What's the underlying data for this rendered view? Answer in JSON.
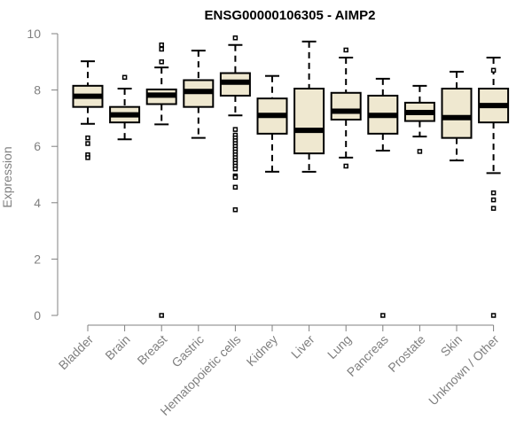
{
  "chart_data": {
    "type": "box",
    "title": "ENSG00000106305 - AIMP2",
    "xlabel": "",
    "ylabel": "Expression",
    "ylim": [
      0,
      10
    ],
    "yticks": [
      0,
      2,
      4,
      6,
      8,
      10
    ],
    "grid": false,
    "legend": "none",
    "box_fill": "#efe8d0",
    "stroke": "#000000",
    "categories": [
      "Bladder",
      "Brain",
      "Breast",
      "Gastric",
      "Hematopoietic cells",
      "Kidney",
      "Liver",
      "Lung",
      "Pancreas",
      "Prostate",
      "Skin",
      "Unknown / Other"
    ],
    "boxes": [
      {
        "category": "Bladder",
        "whisker_low": 6.8,
        "q1": 7.4,
        "median": 7.78,
        "q3": 8.15,
        "whisker_high": 9.02,
        "outliers": [
          6.3,
          6.1,
          5.7,
          5.6
        ]
      },
      {
        "category": "Brain",
        "whisker_low": 6.25,
        "q1": 6.85,
        "median": 7.12,
        "q3": 7.4,
        "whisker_high": 8.05,
        "outliers": [
          8.45
        ]
      },
      {
        "category": "Breast",
        "whisker_low": 6.78,
        "q1": 7.5,
        "median": 7.82,
        "q3": 8.02,
        "whisker_high": 8.8,
        "outliers": [
          9.6,
          9.45,
          9.0,
          0
        ]
      },
      {
        "category": "Gastric",
        "whisker_low": 6.3,
        "q1": 7.4,
        "median": 7.95,
        "q3": 8.35,
        "whisker_high": 9.4,
        "outliers": []
      },
      {
        "category": "Hematopoietic cells",
        "whisker_low": 7.1,
        "q1": 7.8,
        "median": 8.28,
        "q3": 8.6,
        "whisker_high": 9.6,
        "outliers": [
          9.85,
          6.6,
          6.4,
          6.3,
          6.2,
          6.1,
          6.0,
          5.9,
          5.8,
          5.7,
          5.6,
          5.5,
          5.4,
          5.3,
          5.2,
          4.95,
          4.9,
          4.55,
          3.75
        ]
      },
      {
        "category": "Kidney",
        "whisker_low": 5.1,
        "q1": 6.45,
        "median": 7.1,
        "q3": 7.7,
        "whisker_high": 8.5,
        "outliers": []
      },
      {
        "category": "Liver",
        "whisker_low": 5.1,
        "q1": 5.75,
        "median": 6.57,
        "q3": 8.05,
        "whisker_high": 9.72,
        "outliers": []
      },
      {
        "category": "Lung",
        "whisker_low": 5.6,
        "q1": 6.95,
        "median": 7.25,
        "q3": 7.9,
        "whisker_high": 9.15,
        "outliers": [
          9.42,
          5.3
        ]
      },
      {
        "category": "Pancreas",
        "whisker_low": 5.85,
        "q1": 6.45,
        "median": 7.1,
        "q3": 7.8,
        "whisker_high": 8.4,
        "outliers": [
          0
        ]
      },
      {
        "category": "Prostate",
        "whisker_low": 6.35,
        "q1": 6.9,
        "median": 7.2,
        "q3": 7.55,
        "whisker_high": 8.15,
        "outliers": [
          5.82
        ]
      },
      {
        "category": "Skin",
        "whisker_low": 5.5,
        "q1": 6.3,
        "median": 7.02,
        "q3": 8.05,
        "whisker_high": 8.65,
        "outliers": []
      },
      {
        "category": "Unknown / Other",
        "whisker_low": 5.05,
        "q1": 6.85,
        "median": 7.45,
        "q3": 8.05,
        "whisker_high": 9.15,
        "outliers": [
          8.7,
          4.35,
          4.1,
          3.8,
          0
        ]
      }
    ]
  }
}
